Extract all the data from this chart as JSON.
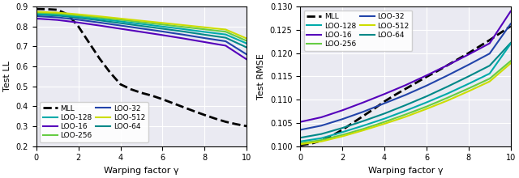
{
  "left": {
    "xlabel": "Warping factor γ",
    "ylabel": "Test LL",
    "xlim": [
      0,
      10
    ],
    "ylim": [
      0.2,
      0.9
    ],
    "yticks": [
      0.2,
      0.3,
      0.4,
      0.5,
      0.6,
      0.7,
      0.8,
      0.9
    ],
    "xticks": [
      0,
      2,
      4,
      6,
      8,
      10
    ],
    "series": {
      "MLL": {
        "color": "#000000",
        "linestyle": "--",
        "linewidth": 2.0,
        "x": [
          0,
          0.5,
          1.0,
          1.5,
          2.0,
          2.5,
          3.0,
          3.5,
          4.0,
          4.5,
          5.0,
          5.5,
          6.0,
          6.5,
          7.0,
          7.5,
          8.0,
          8.5,
          9.0,
          9.5,
          10.0
        ],
        "y": [
          0.888,
          0.887,
          0.884,
          0.86,
          0.8,
          0.72,
          0.64,
          0.57,
          0.51,
          0.485,
          0.467,
          0.453,
          0.435,
          0.415,
          0.395,
          0.375,
          0.356,
          0.338,
          0.322,
          0.31,
          0.3
        ]
      },
      "LOO-16": {
        "color": "#5500bb",
        "linestyle": "-",
        "linewidth": 1.5,
        "x": [
          0,
          1,
          2,
          3,
          4,
          5,
          6,
          7,
          8,
          9,
          10
        ],
        "y": [
          0.84,
          0.833,
          0.82,
          0.805,
          0.789,
          0.773,
          0.757,
          0.74,
          0.722,
          0.704,
          0.635
        ]
      },
      "LOO-32": {
        "color": "#2244aa",
        "linestyle": "-",
        "linewidth": 1.5,
        "x": [
          0,
          1,
          2,
          3,
          4,
          5,
          6,
          7,
          8,
          9,
          10
        ],
        "y": [
          0.852,
          0.846,
          0.834,
          0.82,
          0.805,
          0.79,
          0.775,
          0.759,
          0.742,
          0.726,
          0.66
        ]
      },
      "LOO-64": {
        "color": "#008888",
        "linestyle": "-",
        "linewidth": 1.5,
        "x": [
          0,
          1,
          2,
          3,
          4,
          5,
          6,
          7,
          8,
          9,
          10
        ],
        "y": [
          0.86,
          0.855,
          0.844,
          0.831,
          0.817,
          0.803,
          0.789,
          0.775,
          0.759,
          0.744,
          0.695
        ]
      },
      "LOO-128": {
        "color": "#00aaaa",
        "linestyle": "-",
        "linewidth": 1.5,
        "x": [
          0,
          1,
          2,
          3,
          4,
          5,
          6,
          7,
          8,
          9,
          10
        ],
        "y": [
          0.865,
          0.86,
          0.85,
          0.838,
          0.826,
          0.813,
          0.8,
          0.787,
          0.773,
          0.76,
          0.715
        ]
      },
      "LOO-256": {
        "color": "#66cc44",
        "linestyle": "-",
        "linewidth": 1.5,
        "x": [
          0,
          1,
          2,
          3,
          4,
          5,
          6,
          7,
          8,
          9,
          10
        ],
        "y": [
          0.87,
          0.865,
          0.856,
          0.845,
          0.834,
          0.822,
          0.81,
          0.798,
          0.786,
          0.774,
          0.728
        ]
      },
      "LOO-512": {
        "color": "#ccdd00",
        "linestyle": "-",
        "linewidth": 1.5,
        "x": [
          0,
          1,
          2,
          3,
          4,
          5,
          6,
          7,
          8,
          9,
          10
        ],
        "y": [
          0.874,
          0.87,
          0.861,
          0.851,
          0.84,
          0.829,
          0.818,
          0.807,
          0.796,
          0.785,
          0.74
        ]
      }
    },
    "legend_col1": [
      "MLL",
      "LOO-16",
      "LOO-32",
      "LOO-64"
    ],
    "legend_col2": [
      "LOO-128",
      "LOO-256",
      "LOO-512"
    ],
    "legend_loc": "lower left"
  },
  "right": {
    "xlabel": "Warping factor γ",
    "ylabel": "Test RMSE",
    "xlim": [
      0,
      10
    ],
    "ylim": [
      0.1,
      0.13
    ],
    "yticks": [
      0.1,
      0.105,
      0.11,
      0.115,
      0.12,
      0.125,
      0.13
    ],
    "xticks": [
      0,
      2,
      4,
      6,
      8,
      10
    ],
    "series": {
      "MLL": {
        "color": "#000000",
        "linestyle": "--",
        "linewidth": 2.0,
        "x": [
          0,
          0.5,
          1.0,
          1.5,
          2.0,
          2.5,
          3.0,
          3.5,
          4.0,
          4.5,
          5.0,
          5.5,
          6.0,
          6.5,
          7.0,
          7.5,
          8.0,
          8.5,
          9.0,
          9.5,
          10.0
        ],
        "y": [
          0.1002,
          0.1005,
          0.1012,
          0.1022,
          0.1035,
          0.105,
          0.1065,
          0.108,
          0.1096,
          0.111,
          0.1123,
          0.1136,
          0.1149,
          0.1161,
          0.1174,
          0.1187,
          0.12,
          0.1214,
          0.1228,
          0.1243,
          0.1258
        ]
      },
      "LOO-16": {
        "color": "#5500bb",
        "linestyle": "-",
        "linewidth": 1.5,
        "x": [
          0,
          1,
          2,
          3,
          4,
          5,
          6,
          7,
          8,
          9,
          10
        ],
        "y": [
          0.1052,
          0.1062,
          0.1077,
          0.1094,
          0.1112,
          0.1131,
          0.1152,
          0.1174,
          0.1197,
          0.1221,
          0.129
        ]
      },
      "LOO-32": {
        "color": "#2244aa",
        "linestyle": "-",
        "linewidth": 1.5,
        "x": [
          0,
          1,
          2,
          3,
          4,
          5,
          6,
          7,
          8,
          9,
          10
        ],
        "y": [
          0.1035,
          0.1044,
          0.1058,
          0.1074,
          0.1092,
          0.111,
          0.113,
          0.1152,
          0.1175,
          0.1199,
          0.1263
        ]
      },
      "LOO-64": {
        "color": "#008888",
        "linestyle": "-",
        "linewidth": 1.5,
        "x": [
          0,
          1,
          2,
          3,
          4,
          5,
          6,
          7,
          8,
          9,
          10
        ],
        "y": [
          0.1018,
          0.1026,
          0.1039,
          0.1054,
          0.107,
          0.1088,
          0.1107,
          0.1128,
          0.115,
          0.1173,
          0.1222
        ]
      },
      "LOO-128": {
        "color": "#00aaaa",
        "linestyle": "-",
        "linewidth": 1.5,
        "x": [
          0,
          1,
          2,
          3,
          4,
          5,
          6,
          7,
          8,
          9,
          10
        ],
        "y": [
          0.101,
          0.1017,
          0.103,
          0.1044,
          0.1059,
          0.1076,
          0.1094,
          0.1113,
          0.1134,
          0.1156,
          0.122
        ]
      },
      "LOO-256": {
        "color": "#66cc44",
        "linestyle": "-",
        "linewidth": 1.5,
        "x": [
          0,
          1,
          2,
          3,
          4,
          5,
          6,
          7,
          8,
          9,
          10
        ],
        "y": [
          0.1006,
          0.1013,
          0.1024,
          0.1037,
          0.1052,
          0.1068,
          0.1085,
          0.1104,
          0.1124,
          0.1145,
          0.1183
        ]
      },
      "LOO-512": {
        "color": "#ccdd00",
        "linestyle": "-",
        "linewidth": 1.5,
        "x": [
          0,
          1,
          2,
          3,
          4,
          5,
          6,
          7,
          8,
          9,
          10
        ],
        "y": [
          0.1004,
          0.101,
          0.1021,
          0.1034,
          0.1048,
          0.1063,
          0.108,
          0.1098,
          0.1118,
          0.1139,
          0.1178
        ]
      }
    },
    "legend_col1": [
      "MLL",
      "LOO-16",
      "LOO-32",
      "LOO-64"
    ],
    "legend_col2": [
      "LOO-128",
      "LOO-256",
      "LOO-512"
    ],
    "legend_loc": "upper left"
  },
  "legend_order": [
    "MLL",
    "LOO-16",
    "LOO-32",
    "LOO-64",
    "LOO-128",
    "LOO-256",
    "LOO-512"
  ],
  "background_color": "#eaeaf2"
}
